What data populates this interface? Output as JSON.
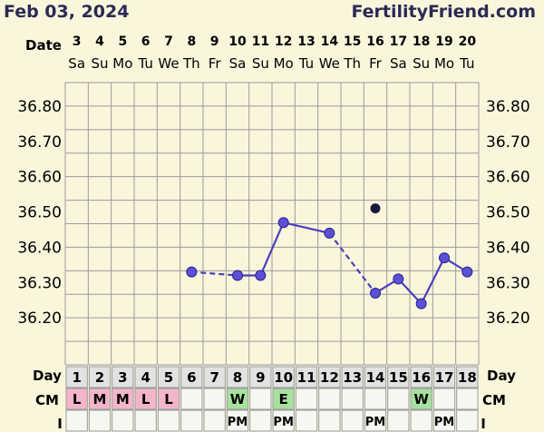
{
  "header": {
    "date": "Feb 03, 2024",
    "brand": "FertilityFriend.com"
  },
  "colors": {
    "background": "#faf6dc",
    "grid": "#9a9a9a",
    "line": "#4a3fc0",
    "point": "#5b50d6",
    "point_outline": "#2a2290",
    "excluded_point": "#1a1a40",
    "cm_menstrual": "#f3b6c9",
    "cm_fertile": "#a8e0a0"
  },
  "row_labels": {
    "date": "Date",
    "day": "Day",
    "cm": "CM",
    "intercourse": "I"
  },
  "chart_data": {
    "type": "line",
    "title": "",
    "xlabel": "Date",
    "ylabel": "",
    "ylim": [
      36.1,
      36.9
    ],
    "yticks": [
      "36.20",
      "36.30",
      "36.40",
      "36.50",
      "36.60",
      "36.70",
      "36.80"
    ],
    "grid": true,
    "cycle_days": [
      "1",
      "2",
      "3",
      "4",
      "5",
      "6",
      "7",
      "8",
      "9",
      "10",
      "11",
      "12",
      "13",
      "14",
      "15",
      "16",
      "17",
      "18"
    ],
    "dates": [
      "3",
      "4",
      "5",
      "6",
      "7",
      "8",
      "9",
      "10",
      "11",
      "12",
      "13",
      "14",
      "15",
      "16",
      "17",
      "18",
      "19",
      "20"
    ],
    "weekdays": [
      "Sa",
      "Su",
      "Mo",
      "Tu",
      "We",
      "Th",
      "Fr",
      "Sa",
      "Su",
      "Mo",
      "Tu",
      "We",
      "Th",
      "Fr",
      "Sa",
      "Su",
      "Mo",
      "Tu"
    ],
    "series": [
      {
        "values": [
          null,
          null,
          null,
          null,
          null,
          36.33,
          null,
          36.32,
          36.32,
          36.47,
          null,
          36.44,
          null,
          36.27,
          36.31,
          36.24,
          36.37,
          36.33
        ],
        "dashed_segments": [
          [
            6,
            8
          ],
          [
            12,
            14
          ]
        ]
      }
    ],
    "excluded_points": [
      {
        "day": 14,
        "value": 36.51
      }
    ],
    "cervical_mucus": [
      "L",
      "M",
      "M",
      "L",
      "L",
      "",
      "",
      "W",
      "",
      "E",
      "",
      "",
      "",
      "",
      "",
      "W",
      "",
      ""
    ],
    "intercourse": [
      "",
      "",
      "",
      "",
      "",
      "",
      "",
      "PM",
      "",
      "PM",
      "",
      "",
      "",
      "PM",
      "",
      "",
      "PM",
      ""
    ]
  }
}
